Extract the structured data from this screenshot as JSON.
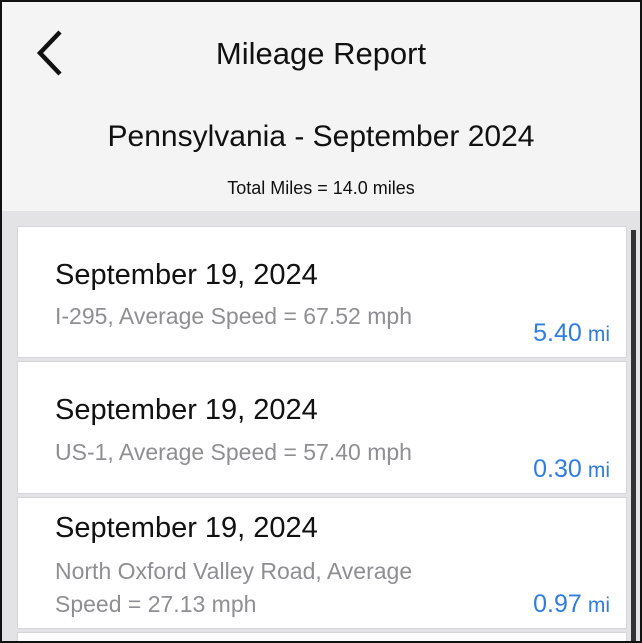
{
  "header": {
    "title": "Mileage Report",
    "subtitle": "Pennsylvania - September 2024",
    "total": "Total Miles = 14.0 miles",
    "back_icon": "chevron-left-icon"
  },
  "accent_color": "#2f7de1",
  "trips": [
    {
      "date": "September 19, 2024",
      "description": "I-295,  Average Speed = 67.52 mph",
      "miles": "5.40",
      "unit": "mi"
    },
    {
      "date": "September 19, 2024",
      "description": "US-1,  Average Speed = 57.40 mph",
      "miles": "0.30",
      "unit": "mi"
    },
    {
      "date": "September 19, 2024",
      "description": "North Oxford Valley Road, Average Speed = 27.13 mph",
      "miles": "0.97",
      "unit": "mi"
    }
  ]
}
